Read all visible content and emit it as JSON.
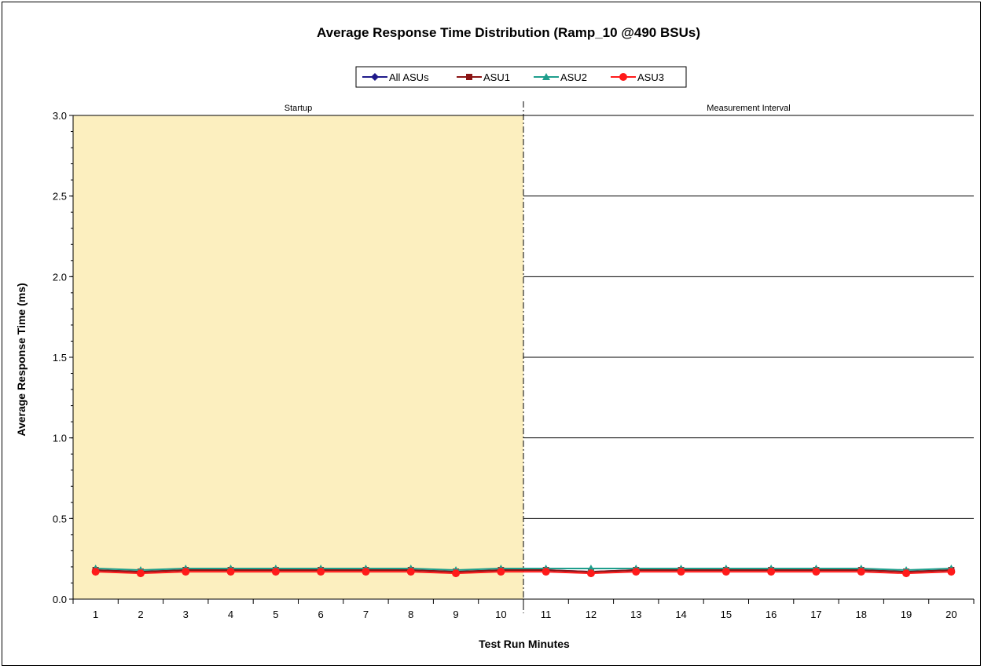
{
  "chart_data": {
    "type": "line",
    "title": "Average Response Time Distribution (Ramp_10 @490 BSUs)",
    "xlabel": "Test Run Minutes",
    "ylabel": "Average Response  Time (ms)",
    "ylim": [
      0,
      3.0
    ],
    "yticks": [
      "0.0",
      "0.5",
      "1.0",
      "1.5",
      "2.0",
      "2.5",
      "3.0"
    ],
    "x": [
      1,
      2,
      3,
      4,
      5,
      6,
      7,
      8,
      9,
      10,
      11,
      12,
      13,
      14,
      15,
      16,
      17,
      18,
      19,
      20
    ],
    "grid": true,
    "legend_position": "top-center",
    "regions": [
      {
        "label": "Startup",
        "from": 1,
        "to": 10,
        "color": "#fcefbf"
      },
      {
        "label": "Measurement Interval",
        "from": 11,
        "to": 20,
        "color": "#ffffff"
      }
    ],
    "series": [
      {
        "name": "All ASUs",
        "color": "#1f1a8a",
        "marker": "diamond",
        "values": [
          0.18,
          0.17,
          0.18,
          0.18,
          0.18,
          0.18,
          0.18,
          0.18,
          0.17,
          0.18,
          0.18,
          0.17,
          0.18,
          0.18,
          0.18,
          0.18,
          0.18,
          0.18,
          0.17,
          0.18
        ]
      },
      {
        "name": "ASU1",
        "color": "#8b1414",
        "marker": "square",
        "values": [
          0.18,
          0.17,
          0.18,
          0.18,
          0.18,
          0.18,
          0.18,
          0.18,
          0.17,
          0.18,
          0.18,
          0.17,
          0.18,
          0.18,
          0.18,
          0.18,
          0.18,
          0.18,
          0.17,
          0.18
        ]
      },
      {
        "name": "ASU2",
        "color": "#1e9e8c",
        "marker": "triangle",
        "values": [
          0.19,
          0.18,
          0.19,
          0.19,
          0.19,
          0.19,
          0.19,
          0.19,
          0.18,
          0.19,
          0.19,
          0.19,
          0.19,
          0.19,
          0.19,
          0.19,
          0.19,
          0.19,
          0.18,
          0.19
        ]
      },
      {
        "name": "ASU3",
        "color": "#ff1a1a",
        "marker": "circle",
        "values": [
          0.17,
          0.16,
          0.17,
          0.17,
          0.17,
          0.17,
          0.17,
          0.17,
          0.16,
          0.17,
          0.17,
          0.16,
          0.17,
          0.17,
          0.17,
          0.17,
          0.17,
          0.17,
          0.16,
          0.17
        ]
      }
    ]
  }
}
